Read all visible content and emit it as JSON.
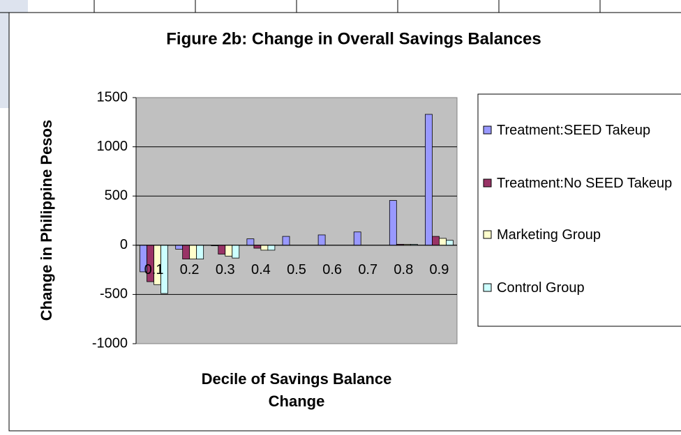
{
  "chart_data": {
    "type": "bar",
    "title": "Figure 2b: Change in Overall Savings Balances",
    "x_label": "Decile of Savings Balance Change",
    "y_label": "Change in Philippine Pesos",
    "categories": [
      "0.1",
      "0.2",
      "0.3",
      "0.4",
      "0.5",
      "0.6",
      "0.7",
      "0.8",
      "0.9"
    ],
    "series": [
      {
        "name": "Treatment:SEED Takeup",
        "color": "#9999ff",
        "values": [
          -270,
          -40,
          -5,
          65,
          90,
          105,
          135,
          455,
          1330
        ]
      },
      {
        "name": "Treatment:No SEED Takeup",
        "color": "#993366",
        "values": [
          -370,
          -140,
          -90,
          -30,
          0,
          0,
          0,
          10,
          90
        ]
      },
      {
        "name": "Marketing Group",
        "color": "#ffffcc",
        "values": [
          -400,
          -140,
          -110,
          -50,
          0,
          0,
          0,
          10,
          70
        ]
      },
      {
        "name": "Control Group",
        "color": "#ccffff",
        "values": [
          -490,
          -140,
          -130,
          -50,
          0,
          0,
          0,
          10,
          50
        ]
      }
    ],
    "ylim": [
      -1000,
      1500
    ],
    "yticks": [
      -1000,
      -500,
      0,
      500,
      1000,
      1500
    ],
    "grid": true,
    "legend": "right",
    "plot_background": "#c0c0c0"
  }
}
